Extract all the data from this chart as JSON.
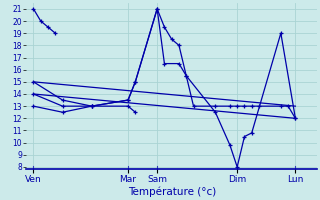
{
  "background_color": "#cceaea",
  "grid_color": "#aad4d4",
  "line_color": "#0000aa",
  "xlabel": "Température (°c)",
  "ylim": [
    7.8,
    21.5
  ],
  "yticks": [
    8,
    9,
    10,
    11,
    12,
    13,
    14,
    15,
    16,
    17,
    18,
    19,
    20,
    21
  ],
  "xlim": [
    0,
    40
  ],
  "tick_labels": [
    "Ven",
    "Mar",
    "Sam",
    "Dim",
    "Lun"
  ],
  "tick_positions": [
    1,
    14,
    18,
    29,
    37
  ],
  "lines": [
    {
      "x": [
        1,
        2,
        3,
        4
      ],
      "y": [
        21,
        20,
        19.5,
        19
      ],
      "marker": "+"
    },
    {
      "x": [
        1,
        5,
        9,
        14,
        15,
        18,
        19,
        20,
        21,
        22,
        23,
        26,
        28,
        29,
        30,
        31,
        32,
        35,
        36,
        37
      ],
      "y": [
        15,
        13.5,
        13,
        13.5,
        15,
        21,
        19.5,
        18.5,
        18,
        15.5,
        13,
        13,
        13,
        13,
        13,
        13,
        13,
        13,
        13,
        12
      ],
      "marker": "+"
    },
    {
      "x": [
        1,
        5,
        9,
        14,
        15,
        18,
        19,
        21,
        22,
        26,
        28,
        29,
        30,
        31,
        35,
        37
      ],
      "y": [
        14,
        13,
        13,
        13.5,
        15,
        21,
        16.5,
        16.5,
        15.5,
        12.5,
        9.8,
        8,
        10.5,
        10.8,
        19,
        12
      ],
      "marker": "+"
    },
    {
      "x": [
        1,
        37
      ],
      "y": [
        15,
        13
      ],
      "marker": null
    },
    {
      "x": [
        1,
        37
      ],
      "y": [
        14,
        12
      ],
      "marker": null
    },
    {
      "x": [
        1,
        5,
        9,
        14,
        15
      ],
      "y": [
        13,
        12.5,
        13,
        13,
        12.5
      ],
      "marker": "+"
    }
  ]
}
